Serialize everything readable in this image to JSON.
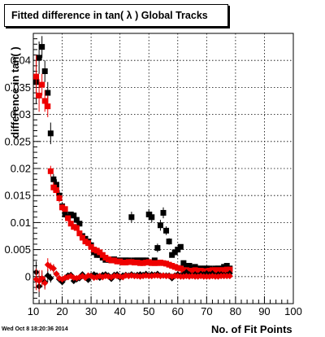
{
  "title": "Fitted difference in tan( λ )  Global Tracks",
  "timestamp": "Wed Oct  8 18:20:36 2014",
  "chart_data": {
    "type": "scatter",
    "title": "Fitted difference in tan( λ )  Global Tracks",
    "xlabel": "No. of Fit Points",
    "ylabel": "difference in tan( )",
    "xlim": [
      10,
      100
    ],
    "ylim": [
      -0.005,
      0.045
    ],
    "x_ticks": [
      "10",
      "20",
      "30",
      "40",
      "50",
      "60",
      "70",
      "80",
      "90",
      "100"
    ],
    "y_ticks": [
      "0",
      "0.005",
      "0.01",
      "0.015",
      "0.02",
      "0.025",
      "0.03",
      "0.035",
      "0.04"
    ],
    "grid": true,
    "colors": {
      "black_series": "#000000",
      "red_series": "#ee0000"
    },
    "series": [
      {
        "marker": "square",
        "color": "#000000",
        "x": [
          11,
          12,
          13,
          14,
          15,
          16,
          17,
          18,
          19,
          20,
          21,
          22,
          23,
          24,
          25,
          26,
          27,
          28,
          29,
          30,
          31,
          32,
          33,
          34,
          35,
          36,
          37,
          38,
          39,
          40,
          41,
          42,
          43,
          44,
          45,
          46,
          47,
          48,
          49,
          50,
          51,
          52,
          53,
          54,
          55,
          56,
          57,
          58,
          59,
          60,
          61,
          62,
          63,
          64,
          65,
          66,
          67,
          68,
          69,
          70,
          71,
          72,
          73,
          74,
          75,
          76,
          77,
          78
        ],
        "y": [
          0.036,
          0.0405,
          0.0425,
          0.038,
          0.034,
          0.0265,
          0.018,
          0.017,
          0.015,
          0.013,
          0.0115,
          0.011,
          0.0115,
          0.0113,
          0.0105,
          0.0098,
          0.0075,
          0.007,
          0.0065,
          0.0058,
          0.0045,
          0.004,
          0.004,
          0.0035,
          0.0031,
          0.0031,
          0.003,
          0.0032,
          0.003,
          0.003,
          0.003,
          0.003,
          0.003,
          0.011,
          0.003,
          0.003,
          0.003,
          0.003,
          0.003,
          0.0115,
          0.011,
          0.003,
          0.0053,
          0.0095,
          0.0118,
          0.0085,
          0.0065,
          0.004,
          0.0045,
          0.005,
          0.0055,
          0.0025,
          0.002,
          0.002,
          0.0015,
          0.0018,
          0.0015,
          0.0015,
          0.0015,
          0.0015,
          0.0015,
          0.0012,
          0.0015,
          0.0015,
          0.0015,
          0.0018,
          0.002,
          0.0015
        ],
        "yerr": [
          0.004,
          0.003,
          0.002,
          0.002,
          0.002,
          0.002,
          0.001,
          0.001,
          0.001,
          0.0008,
          0.0006,
          0.0005,
          0.0005,
          0.0005,
          0.0005,
          0.0005,
          0.0004,
          0.0004,
          0.0004,
          0.0004,
          0.0003,
          0.0003,
          0.0003,
          0.0003,
          0.0003,
          0.0003,
          0.0003,
          0.0003,
          0.0003,
          0.0003,
          0.0003,
          0.0003,
          0.0003,
          0.001,
          0.0003,
          0.0003,
          0.0003,
          0.0003,
          0.0003,
          0.001,
          0.001,
          0.0003,
          0.0008,
          0.001,
          0.001,
          0.0008,
          0.0006,
          0.0004,
          0.0004,
          0.0004,
          0.0004,
          0.0003,
          0.0003,
          0.0003,
          0.0003,
          0.0003,
          0.0003,
          0.0003,
          0.0003,
          0.0003,
          0.0003,
          0.0003,
          0.0003,
          0.0003,
          0.0003,
          0.0003,
          0.0003,
          0.0003
        ]
      },
      {
        "marker": "square",
        "color": "#ee0000",
        "x": [
          11,
          12,
          13,
          14,
          15,
          16,
          17,
          18,
          19,
          20,
          21,
          22,
          23,
          24,
          25,
          26,
          27,
          28,
          29,
          30,
          31,
          32,
          33,
          34,
          35,
          36,
          37,
          38,
          39,
          40,
          41,
          42,
          43,
          44,
          45,
          46,
          47,
          48,
          49,
          50,
          51,
          52,
          53,
          54,
          55,
          56,
          57,
          58,
          59,
          60,
          61,
          62,
          63,
          64,
          65,
          66,
          67,
          68,
          69,
          70,
          71,
          72,
          73,
          74,
          75,
          76,
          77,
          78
        ],
        "y": [
          0.037,
          0.0335,
          0.0355,
          0.0325,
          0.0315,
          0.0195,
          0.0165,
          0.016,
          0.0145,
          0.0128,
          0.0125,
          0.0108,
          0.0098,
          0.0092,
          0.009,
          0.008,
          0.0072,
          0.0065,
          0.0062,
          0.0055,
          0.005,
          0.0048,
          0.0045,
          0.004,
          0.0035,
          0.0032,
          0.003,
          0.003,
          0.0028,
          0.0028,
          0.0026,
          0.0026,
          0.0027,
          0.0027,
          0.0026,
          0.0026,
          0.0025,
          0.0025,
          0.0026,
          0.0027,
          0.0025,
          0.0025,
          0.0025,
          0.0026,
          0.0025,
          0.0024,
          0.0022,
          0.002,
          0.0018,
          0.0016,
          0.0015,
          0.0012,
          0.0012,
          0.0011,
          0.0011,
          0.0012,
          0.0011,
          0.0011,
          0.001,
          0.001,
          0.0011,
          0.0012,
          0.0012,
          0.0012,
          0.0012,
          0.0012,
          0.0013,
          0.0013
        ],
        "yerr": [
          0.004,
          0.003,
          0.002,
          0.002,
          0.002,
          0.001,
          0.001,
          0.001,
          0.0008,
          0.0006,
          0.0005,
          0.0005,
          0.0004,
          0.0004,
          0.0004,
          0.0004,
          0.0003,
          0.0003,
          0.0003,
          0.0003,
          0.0003,
          0.0003,
          0.0003,
          0.0003,
          0.0003,
          0.0003,
          0.0002,
          0.0002,
          0.0002,
          0.0002,
          0.0002,
          0.0002,
          0.0002,
          0.0002,
          0.0002,
          0.0002,
          0.0002,
          0.0002,
          0.0002,
          0.0002,
          0.0002,
          0.0002,
          0.0002,
          0.0002,
          0.0002,
          0.0002,
          0.0002,
          0.0002,
          0.0002,
          0.0002,
          0.0002,
          0.0002,
          0.0002,
          0.0002,
          0.0002,
          0.0002,
          0.0002,
          0.0002,
          0.0002,
          0.0002,
          0.0002,
          0.0002,
          0.0002,
          0.0002,
          0.0002,
          0.0002,
          0.0002,
          0.0002
        ]
      },
      {
        "marker": "diamond",
        "color": "#000000",
        "x": [
          11,
          12,
          13,
          14,
          15,
          16,
          17,
          18,
          19,
          20,
          21,
          22,
          23,
          24,
          25,
          26,
          27,
          28,
          29,
          30,
          31,
          32,
          33,
          34,
          35,
          36,
          37,
          38,
          39,
          40,
          41,
          42,
          43,
          44,
          45,
          46,
          47,
          48,
          49,
          50,
          51,
          52,
          53,
          54,
          55,
          56,
          57,
          58,
          59,
          60,
          61,
          62,
          63,
          64,
          65,
          66,
          67,
          68,
          69,
          70,
          71,
          72,
          73,
          74,
          75,
          76,
          77,
          78
        ],
        "y": [
          0.0008,
          -0.0018,
          -0.0005,
          -0.001,
          0.0002,
          -0.0003,
          0.0015,
          0.0005,
          -0.0005,
          -0.001,
          -0.0003,
          0.0002,
          0.0003,
          -0.0008,
          -0.0005,
          -0.0003,
          0.0004,
          -0.0002,
          -0.0006,
          0.0002,
          0.0004,
          0.0002,
          -0.0002,
          0.0003,
          0.0004,
          0.0002,
          -0.0004,
          0.0003,
          0.0004,
          -0.0002,
          0.0002,
          0.0003,
          0.0002,
          0.0004,
          0.0002,
          0.0003,
          0.0004,
          0.0003,
          0.0005,
          0.0002,
          0.0004,
          0.0003,
          0.0005,
          0.0002,
          0.0002,
          0.0002,
          0.0002,
          -0.0003,
          0.0002,
          0.0004,
          0.0002,
          0.0004,
          0.0008,
          0.0004,
          0.0002,
          0.0004,
          0.0002,
          0.0005,
          0.0004,
          0.0006,
          0.0004,
          0.0006,
          0.0002,
          0.0004,
          0.0004,
          0.0003,
          0.0003,
          0.0006
        ],
        "yerr": [
          0.002,
          0.002,
          0.0015,
          0.0012,
          0.0012,
          0.0008,
          0.0008,
          0.0006,
          0.0006,
          0.0005,
          0.0005,
          0.0004,
          0.0004,
          0.0003,
          0.0003,
          0.0003,
          0.0003,
          0.0003,
          0.0003,
          0.0003,
          0.0002,
          0.0002,
          0.0002,
          0.0002,
          0.0002,
          0.0002,
          0.0002,
          0.0002,
          0.0002,
          0.0002,
          0.0002,
          0.0002,
          0.0002,
          0.0002,
          0.0002,
          0.0002,
          0.0002,
          0.0002,
          0.0002,
          0.0002,
          0.0002,
          0.0002,
          0.0002,
          0.0002,
          0.0002,
          0.0002,
          0.0002,
          0.0002,
          0.0002,
          0.0002,
          0.0002,
          0.0002,
          0.0002,
          0.0002,
          0.0002,
          0.0002,
          0.0002,
          0.0002,
          0.0002,
          0.0002,
          0.0002,
          0.0002,
          0.0002,
          0.0002,
          0.0002,
          0.0002,
          0.0002,
          0.0002
        ]
      },
      {
        "marker": "diamond",
        "color": "#ee0000",
        "x": [
          11,
          12,
          13,
          14,
          15,
          16,
          17,
          18,
          19,
          20,
          21,
          22,
          23,
          24,
          25,
          26,
          27,
          28,
          29,
          30,
          31,
          32,
          33,
          34,
          35,
          36,
          37,
          38,
          39,
          40,
          41,
          42,
          43,
          44,
          45,
          46,
          47,
          48,
          49,
          50,
          51,
          52,
          53,
          54,
          55,
          56,
          57,
          58,
          59,
          60,
          61,
          62,
          63,
          64,
          65,
          66,
          67,
          68,
          69,
          70,
          71,
          72,
          73,
          74,
          75,
          76,
          77,
          78
        ],
        "y": [
          -0.0005,
          -0.0008,
          -0.0003,
          -0.0012,
          0.0022,
          0.0018,
          0.0015,
          0.0005,
          -0.0003,
          -0.0005,
          -0.0002,
          -0.0001,
          0.0001,
          -0.0002,
          -0.0003,
          -0.0001,
          0.0001,
          -0.0002,
          0.0002,
          0.0001,
          -0.0002,
          -0.0001,
          0.0001,
          -0.0001,
          0.0001,
          0.0,
          -0.0001,
          0.0001,
          0.0001,
          0.0,
          -0.0001,
          0.0002,
          0.0001,
          0.0002,
          0.0001,
          0.0001,
          0.0,
          0.0001,
          0.0002,
          0.0001,
          0.0001,
          0.0002,
          0.0002,
          0.0001,
          0.0002,
          0.0001,
          0.0001,
          0.0,
          0.0001,
          0.0001,
          0.0,
          0.0,
          0.0001,
          0.0,
          0.0001,
          0.0,
          0.0,
          0.0001,
          0.0,
          0.0,
          0.0,
          0.0001,
          0.0,
          0.0,
          0.0001,
          0.0001,
          0.0001,
          0.0001
        ],
        "yerr": [
          0.002,
          0.002,
          0.0015,
          0.0012,
          0.0012,
          0.0008,
          0.0008,
          0.0006,
          0.0006,
          0.0005,
          0.0005,
          0.0004,
          0.0004,
          0.0003,
          0.0003,
          0.0003,
          0.0003,
          0.0003,
          0.0003,
          0.0003,
          0.0002,
          0.0002,
          0.0002,
          0.0002,
          0.0002,
          0.0002,
          0.0002,
          0.0002,
          0.0002,
          0.0002,
          0.0002,
          0.0002,
          0.0002,
          0.0002,
          0.0002,
          0.0002,
          0.0002,
          0.0002,
          0.0002,
          0.0002,
          0.0002,
          0.0002,
          0.0002,
          0.0002,
          0.0002,
          0.0002,
          0.0002,
          0.0002,
          0.0002,
          0.0002,
          0.0002,
          0.0002,
          0.0002,
          0.0002,
          0.0002,
          0.0002,
          0.0002,
          0.0002,
          0.0002,
          0.0002,
          0.0002,
          0.0002,
          0.0002,
          0.0002,
          0.0002,
          0.0002,
          0.0002,
          0.0002
        ]
      }
    ]
  }
}
